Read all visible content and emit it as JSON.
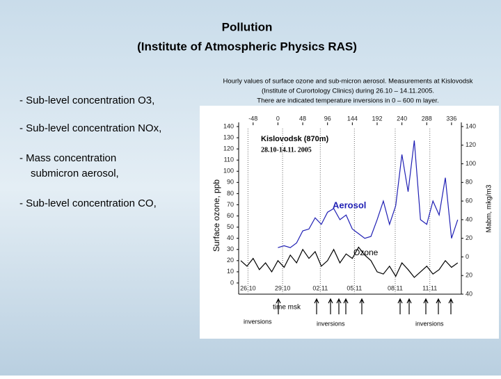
{
  "header": {
    "title": "Pollution",
    "subtitle": "(Institute of Atmospheric Physics RAS)"
  },
  "bullets": [
    "- Sub-level concentration  O3,",
    "- Sub-level concentration NOx,",
    "- Mass concentration",
    "submicron aerosol,",
    "- Sub-level concentration  CO,"
  ],
  "caption": [
    "Hourly values of surface ozone and sub-micron aerosol. Measurements at Kislovodsk",
    "(Institute of Curortology Clinics) during 26.10 – 14.11.2005.",
    "There are indicated temperature inversions in 0 – 600 m layer."
  ],
  "chart_data": {
    "type": "line",
    "ylabel": "Surface ozone, ppb",
    "y2label": "Mabm, mkg/m3",
    "annotations": [
      "Kislovodsk (870m)",
      "28.10-14.11. 2005",
      "time msk",
      "inversions",
      "inversions",
      "inversions"
    ],
    "xlim": [
      -76,
      355
    ],
    "xticks": [
      -48,
      0,
      48,
      96,
      144,
      192,
      240,
      288,
      336
    ],
    "x2ticks": [
      {
        "value": -58,
        "label": "26.10"
      },
      {
        "value": 9,
        "label": "29.10"
      },
      {
        "value": 82,
        "label": "02.11"
      },
      {
        "value": 148,
        "label": "05.11"
      },
      {
        "value": 227,
        "label": "08.11"
      },
      {
        "value": 294,
        "label": "11.11"
      }
    ],
    "ylim": [
      -10,
      140
    ],
    "yticks": [
      0,
      10,
      20,
      30,
      40,
      50,
      60,
      70,
      80,
      90,
      100,
      110,
      120,
      130,
      140
    ],
    "y2lim": [
      -40,
      140
    ],
    "y2ticks": [
      {
        "value": -40,
        "label": "40"
      },
      {
        "value": -20,
        "label": "20"
      },
      0,
      20,
      40,
      60,
      80,
      100,
      120,
      140
    ],
    "series": [
      {
        "name": "Ozone",
        "color": "#000000",
        "axis": "y",
        "x": [
          -72,
          -60,
          -48,
          -36,
          -24,
          -12,
          0,
          12,
          24,
          36,
          48,
          60,
          72,
          84,
          96,
          108,
          120,
          132,
          144,
          156,
          168,
          180,
          192,
          204,
          216,
          228,
          240,
          252,
          264,
          276,
          288,
          300,
          312,
          324,
          336,
          348
        ],
        "values": [
          20,
          15,
          22,
          12,
          18,
          10,
          20,
          14,
          25,
          18,
          30,
          22,
          28,
          15,
          20,
          30,
          18,
          26,
          22,
          32,
          25,
          20,
          10,
          8,
          15,
          6,
          18,
          12,
          5,
          10,
          15,
          8,
          12,
          20,
          14,
          18
        ]
      },
      {
        "name": "Aerosol",
        "color": "#1f1fb4",
        "axis": "y2",
        "x": [
          0,
          12,
          24,
          36,
          48,
          60,
          72,
          84,
          96,
          108,
          120,
          132,
          144,
          156,
          168,
          180,
          192,
          204,
          216,
          228,
          240,
          252,
          264,
          276,
          288,
          300,
          312,
          324,
          336,
          348
        ],
        "values": [
          10,
          12,
          10,
          15,
          28,
          30,
          42,
          35,
          48,
          52,
          40,
          45,
          30,
          25,
          20,
          22,
          40,
          60,
          35,
          55,
          110,
          70,
          125,
          40,
          35,
          60,
          45,
          85,
          20,
          40
        ]
      }
    ]
  }
}
